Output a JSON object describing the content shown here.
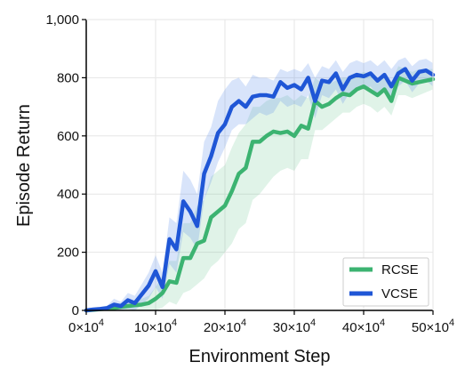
{
  "chart_data": {
    "type": "line",
    "xlabel": "Environment Step",
    "ylabel": "Episode Return",
    "xlim": [
      0,
      500000
    ],
    "ylim": [
      0,
      1000
    ],
    "x_ticks": [
      0,
      100000,
      200000,
      300000,
      400000,
      500000
    ],
    "x_tick_mantissas": [
      "0",
      "10",
      "20",
      "30",
      "40",
      "50"
    ],
    "x_tick_base": "×10",
    "x_tick_exponent": "4",
    "y_ticks": [
      0,
      200,
      400,
      600,
      800,
      1000
    ],
    "y_tick_labels": [
      "0",
      "200",
      "400",
      "600",
      "800",
      "1,000"
    ],
    "grid": true,
    "legend_position": "bottom-right",
    "x": [
      0,
      10000,
      20000,
      30000,
      40000,
      50000,
      60000,
      70000,
      80000,
      90000,
      100000,
      110000,
      120000,
      130000,
      140000,
      150000,
      160000,
      170000,
      180000,
      190000,
      200000,
      210000,
      220000,
      230000,
      240000,
      250000,
      260000,
      270000,
      280000,
      290000,
      300000,
      310000,
      320000,
      330000,
      340000,
      350000,
      360000,
      370000,
      380000,
      390000,
      400000,
      410000,
      420000,
      430000,
      440000,
      450000,
      460000,
      470000,
      480000,
      490000,
      500000
    ],
    "series": [
      {
        "name": "RCSE",
        "color": "#3cb371",
        "band_color": "#3cb371",
        "values": [
          0,
          2,
          4,
          6,
          8,
          12,
          15,
          18,
          20,
          25,
          40,
          60,
          100,
          95,
          180,
          180,
          230,
          240,
          320,
          340,
          360,
          410,
          470,
          490,
          580,
          580,
          600,
          615,
          610,
          615,
          600,
          635,
          625,
          720,
          700,
          710,
          730,
          745,
          740,
          760,
          770,
          755,
          740,
          760,
          720,
          800,
          790,
          780,
          785,
          790,
          795
        ],
        "lower": [
          0,
          0,
          0,
          0,
          0,
          0,
          0,
          0,
          0,
          0,
          0,
          10,
          30,
          20,
          60,
          70,
          90,
          110,
          150,
          170,
          200,
          230,
          280,
          300,
          380,
          400,
          430,
          460,
          480,
          490,
          480,
          520,
          520,
          620,
          620,
          640,
          660,
          680,
          680,
          700,
          710,
          700,
          680,
          700,
          670,
          740,
          740,
          730,
          740,
          750,
          760
        ],
        "upper": [
          5,
          8,
          10,
          14,
          18,
          25,
          30,
          35,
          40,
          50,
          80,
          120,
          170,
          170,
          300,
          300,
          360,
          380,
          460,
          480,
          500,
          560,
          610,
          640,
          700,
          700,
          720,
          730,
          730,
          740,
          720,
          740,
          730,
          800,
          780,
          780,
          790,
          800,
          800,
          810,
          820,
          810,
          800,
          810,
          780,
          840,
          830,
          820,
          830,
          830,
          830
        ]
      },
      {
        "name": "VCSE",
        "color": "#1f56d6",
        "band_color": "#4f86e8",
        "values": [
          0,
          3,
          5,
          8,
          20,
          15,
          35,
          25,
          55,
          85,
          135,
          80,
          245,
          210,
          375,
          340,
          290,
          470,
          530,
          610,
          640,
          700,
          720,
          700,
          735,
          740,
          740,
          735,
          785,
          765,
          775,
          760,
          800,
          720,
          790,
          785,
          815,
          760,
          800,
          810,
          805,
          815,
          790,
          810,
          770,
          815,
          830,
          790,
          820,
          825,
          810
        ],
        "lower": [
          0,
          0,
          0,
          0,
          0,
          0,
          5,
          0,
          20,
          40,
          80,
          40,
          160,
          130,
          270,
          250,
          210,
          380,
          440,
          510,
          560,
          620,
          640,
          640,
          660,
          680,
          670,
          680,
          720,
          700,
          710,
          700,
          740,
          660,
          740,
          730,
          760,
          710,
          750,
          760,
          760,
          770,
          740,
          760,
          720,
          770,
          790,
          750,
          780,
          790,
          770
        ],
        "upper": [
          5,
          8,
          12,
          16,
          40,
          30,
          60,
          50,
          90,
          130,
          190,
          130,
          320,
          300,
          480,
          450,
          400,
          580,
          630,
          720,
          760,
          790,
          800,
          770,
          810,
          800,
          800,
          790,
          830,
          820,
          830,
          820,
          850,
          800,
          840,
          830,
          860,
          820,
          850,
          860,
          850,
          860,
          840,
          860,
          830,
          860,
          870,
          840,
          860,
          865,
          850
        ]
      }
    ]
  }
}
